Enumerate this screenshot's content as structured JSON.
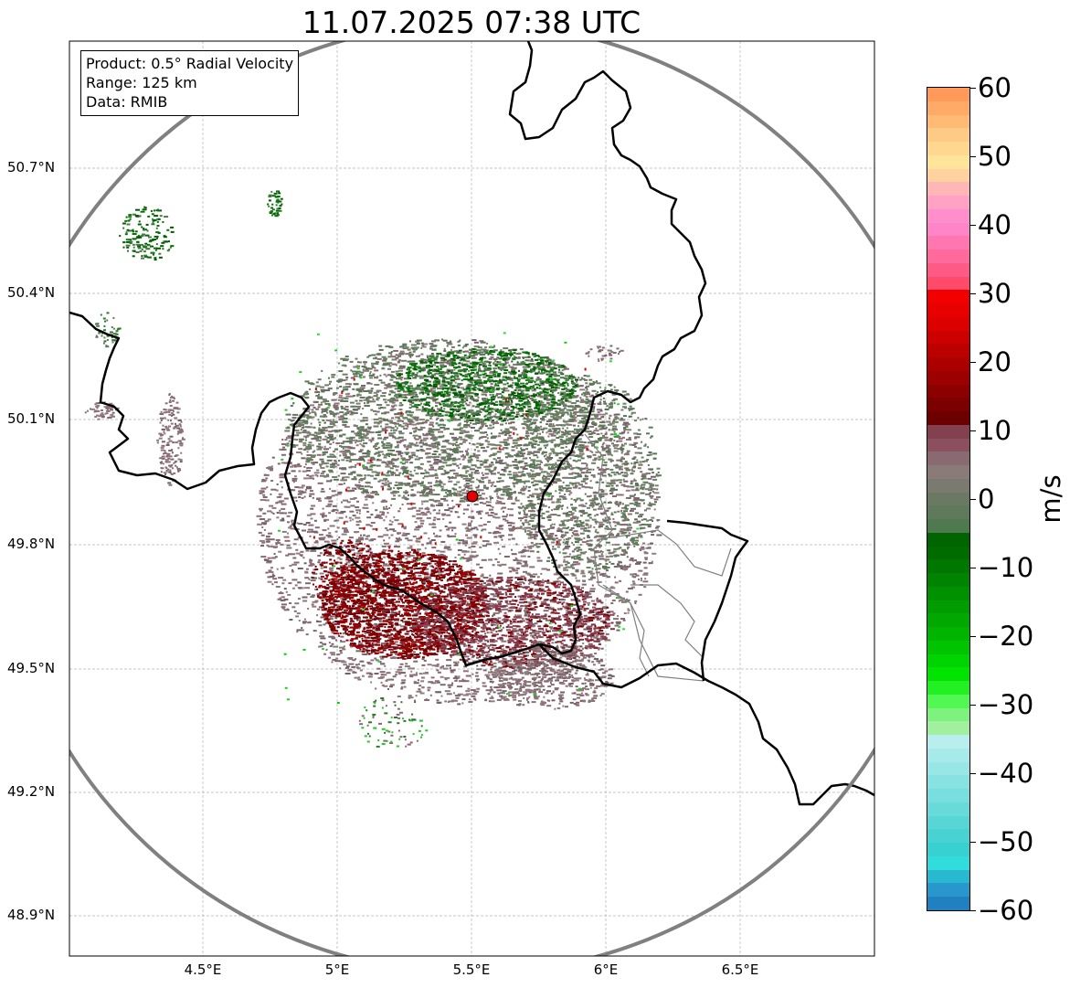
{
  "title": "11.07.2025 07:38 UTC",
  "info": {
    "product": "Product: 0.5° Radial Velocity",
    "range": "Range: 125 km",
    "source": "Data: RMIB"
  },
  "map": {
    "lon_range": [
      4.0,
      7.0
    ],
    "lat_range": [
      48.8,
      51.0
    ],
    "lat_ticks": [
      "50.7°N",
      "50.4°N",
      "50.1°N",
      "49.8°N",
      "49.5°N",
      "49.2°N",
      "48.9°N"
    ],
    "lon_ticks": [
      "4.5°E",
      "5°E",
      "5.5°E",
      "6°E",
      "6.5°E"
    ],
    "radar_site": {
      "lon": 5.505,
      "lat": 49.914
    },
    "range_km": 125
  },
  "colorbar": {
    "unit": "m/s",
    "min": -60,
    "max": 60,
    "ticks": [
      "60",
      "50",
      "40",
      "30",
      "20",
      "10",
      "0",
      "−10",
      "−20",
      "−30",
      "−40",
      "−50",
      "−60"
    ],
    "colors": {
      "outflow_strong": "#ff9a5a",
      "outflow_mid": "#ff4a6a",
      "outflow_red": "#e00000",
      "outflow_dark": "#7a0000",
      "near_zero": "#8a7070",
      "near_zero_green": "#5f7a5a",
      "inflow_dark": "#006400",
      "inflow_green": "#22cc22",
      "inflow_cyan": "#50dcdc",
      "inflow_blue": "#1f78b4"
    }
  }
}
